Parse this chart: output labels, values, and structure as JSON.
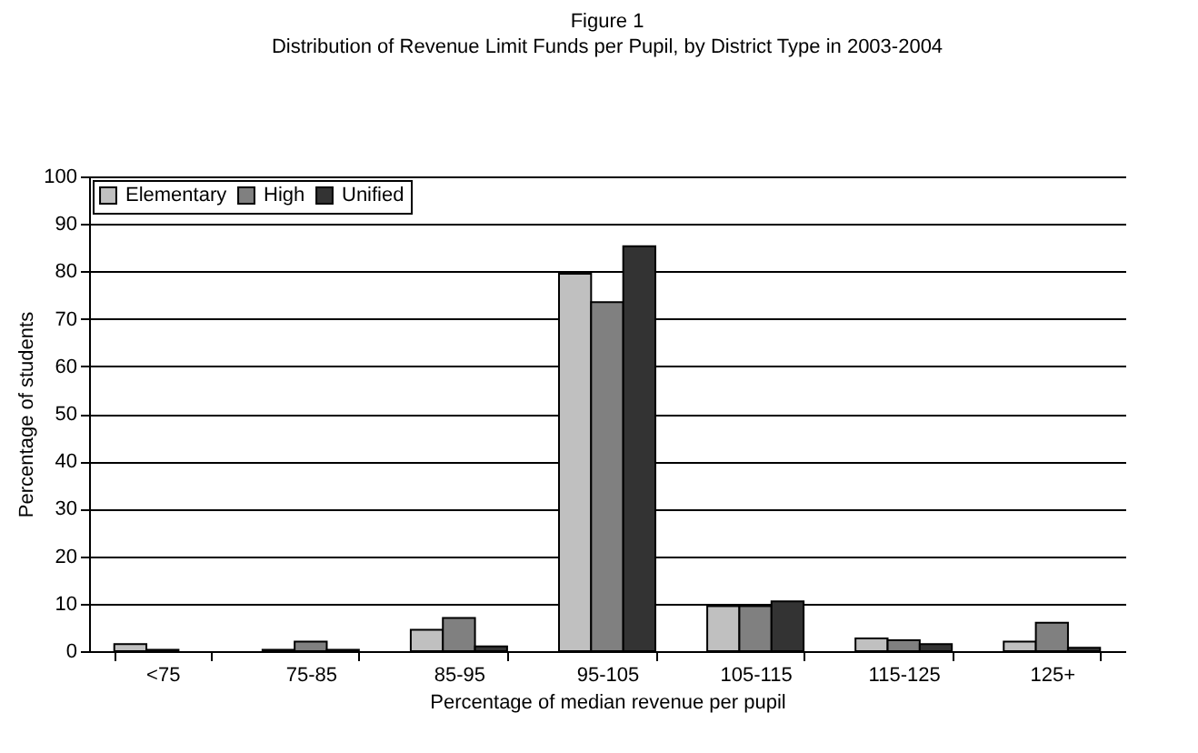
{
  "chart_data": {
    "type": "bar",
    "title": "Figure 1",
    "subtitle": "Distribution of Revenue Limit Funds per Pupil, by District Type in 2003-2004",
    "xlabel": "Percentage of median revenue per pupil",
    "ylabel": "Percentage of students",
    "categories": [
      "<75",
      "75-85",
      "85-95",
      "95-105",
      "105-115",
      "115-125",
      "125+"
    ],
    "series": [
      {
        "name": "Elementary",
        "color": "#c0c0c0",
        "values": [
          1.5,
          0.3,
          4.5,
          79.5,
          9.5,
          2.7,
          2
        ]
      },
      {
        "name": "High",
        "color": "#808080",
        "values": [
          0.3,
          2,
          7,
          73.5,
          9.5,
          2.3,
          6
        ]
      },
      {
        "name": "Unified",
        "color": "#333333",
        "values": [
          null,
          0.3,
          1,
          85.3,
          10.5,
          1.5,
          0.7
        ]
      }
    ],
    "ylim": [
      0,
      100
    ],
    "yticks": [
      0,
      10,
      20,
      30,
      40,
      50,
      60,
      70,
      80,
      90,
      100
    ],
    "grid": "y",
    "legend": "top left"
  }
}
